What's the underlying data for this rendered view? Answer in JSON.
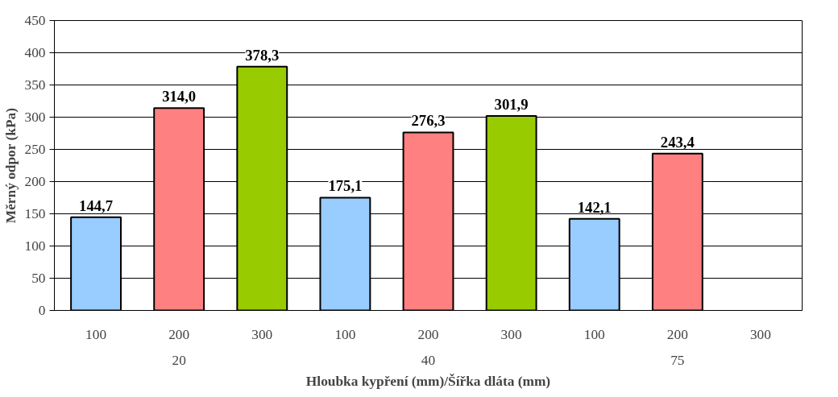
{
  "chart_data": {
    "type": "bar",
    "xlabel": "Hloubka kypření (mm)/Šířka dláta (mm)",
    "ylabel": "Měrný odpor (kPa)",
    "categories": [
      "100",
      "200",
      "300",
      "100",
      "200",
      "300",
      "100",
      "200",
      "300"
    ],
    "values": [
      144.7,
      314.0,
      378.3,
      175.1,
      276.3,
      301.9,
      142.1,
      243.4,
      null
    ],
    "colors": [
      "#99ccff",
      "#ff8080",
      "#99cc00",
      "#99ccff",
      "#ff8080",
      "#99cc00",
      "#99ccff",
      "#ff8080",
      "#99cc00"
    ],
    "value_labels": [
      "144,7",
      "314,0",
      "378,3",
      "175,1",
      "276,3",
      "301,9",
      "142,1",
      "243,4",
      null
    ],
    "annotations": [
      "20",
      "40",
      "75"
    ],
    "ylim": [
      0,
      450
    ],
    "yticks": [
      0,
      50,
      100,
      150,
      200,
      250,
      300,
      350,
      400,
      450
    ],
    "grid": "y"
  }
}
